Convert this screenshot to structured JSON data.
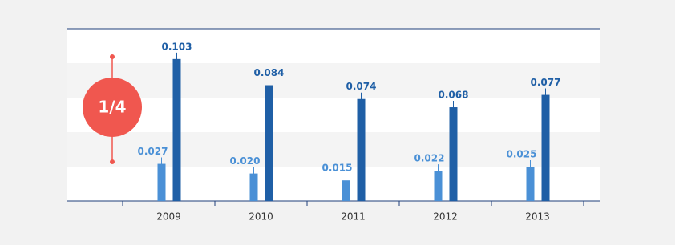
{
  "chart_data": {
    "type": "bar",
    "categories": [
      "2009",
      "2010",
      "2011",
      "2012",
      "2013"
    ],
    "series": [
      {
        "color": "#4a90d6",
        "values": [
          0.027,
          0.02,
          0.015,
          0.022,
          0.025
        ],
        "value_labels": [
          "0.027",
          "0.020",
          "0.015",
          "0.022",
          "0.025"
        ]
      },
      {
        "color": "#1f5fa6",
        "values": [
          0.103,
          0.084,
          0.074,
          0.068,
          0.077
        ],
        "value_labels": [
          "0.103",
          "0.084",
          "0.074",
          "0.068",
          "0.077"
        ]
      }
    ],
    "ylim": [
      0,
      0.125
    ],
    "yticks": [
      0,
      0.025,
      0.05,
      0.075,
      0.1,
      0.125
    ],
    "grid": true,
    "annotation": "1/4"
  }
}
